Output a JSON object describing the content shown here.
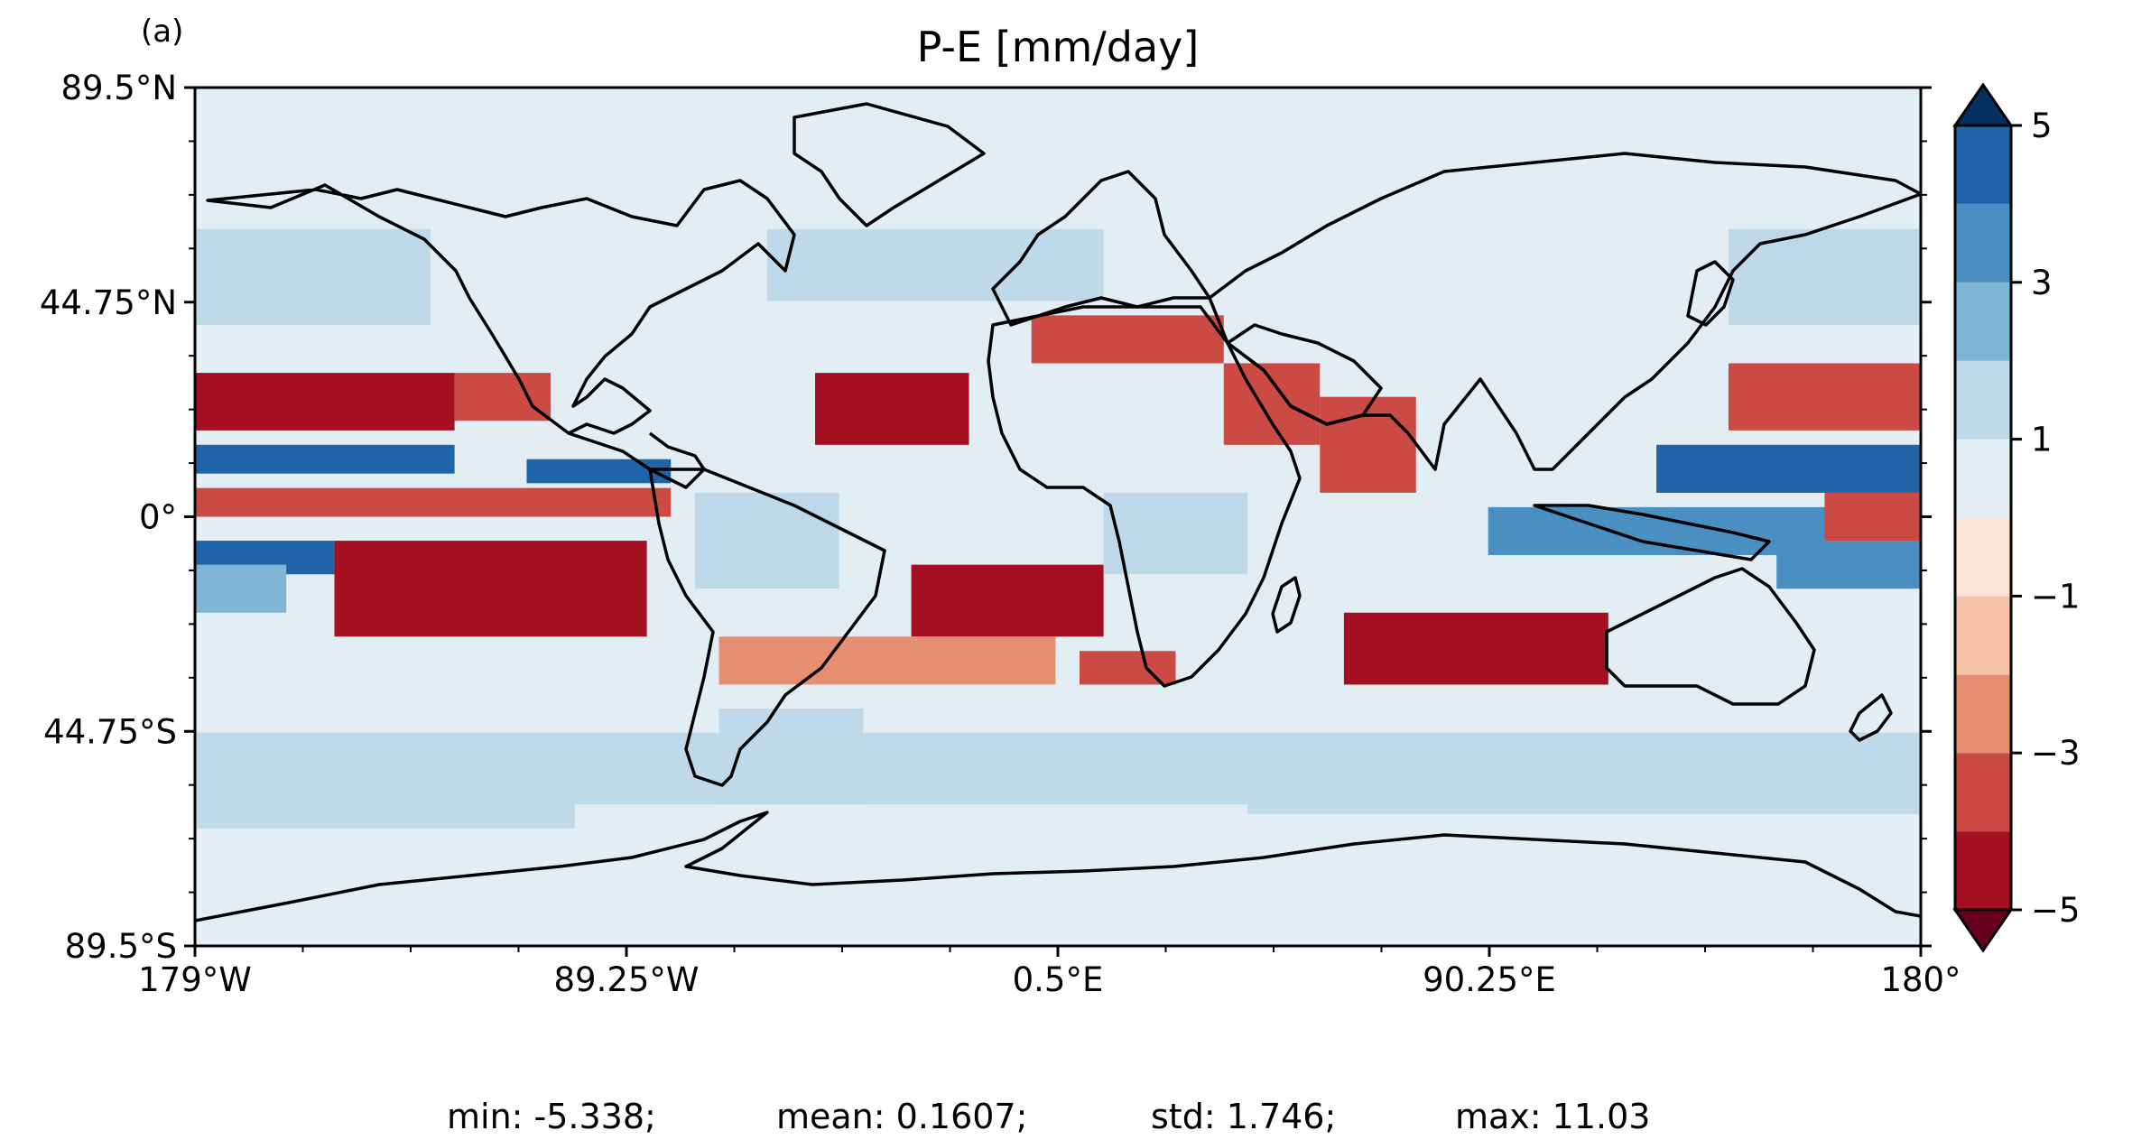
{
  "panel_label": "(a)",
  "title": "P-E [mm/day]",
  "lat_ticks": [
    {
      "value": 89.5,
      "label": "89.5°N"
    },
    {
      "value": 44.75,
      "label": "44.75°N"
    },
    {
      "value": 0,
      "label": "0°"
    },
    {
      "value": -44.75,
      "label": "44.75°S"
    },
    {
      "value": -89.5,
      "label": "89.5°S"
    }
  ],
  "lon_ticks": [
    {
      "value": -179,
      "label": "179°W"
    },
    {
      "value": -89.25,
      "label": "89.25°W"
    },
    {
      "value": 0.5,
      "label": "0.5°E"
    },
    {
      "value": 90.25,
      "label": "90.25°E"
    },
    {
      "value": 180,
      "label": "180°"
    }
  ],
  "colorbar": {
    "levels": [
      -5,
      -4,
      -3,
      -2,
      -1,
      0,
      1,
      2,
      3,
      4,
      5
    ],
    "tick_labels": [
      {
        "value": 5,
        "label": "5"
      },
      {
        "value": 3,
        "label": "3"
      },
      {
        "value": 1,
        "label": "1"
      },
      {
        "value": -1,
        "label": "−1"
      },
      {
        "value": -3,
        "label": "−3"
      },
      {
        "value": -5,
        "label": "−5"
      }
    ],
    "colors": [
      "#67001f",
      "#b2182b",
      "#d6604d",
      "#f4a582",
      "#fddbc7",
      "#f7f7f7",
      "#d1e5f0",
      "#92c5de",
      "#4393c3",
      "#2166ac",
      "#053061"
    ],
    "band_colors": [
      "#a50f22",
      "#cc4a44",
      "#e58e71",
      "#f7c3a8",
      "#fbe5d8",
      "#e3eef4",
      "#bdd9ea",
      "#7fb6d6",
      "#4a8fc2",
      "#1f64a8"
    ],
    "under_color": "#67001f",
    "over_color": "#053061",
    "extend": "both"
  },
  "stats": {
    "min": "min: -5.338;",
    "mean": "mean: 0.1607;",
    "std": "std: 1.746;",
    "max": "max: 11.03"
  },
  "map_regions": [
    {
      "lon": [
        -179,
        -125
      ],
      "lat": [
        9,
        15
      ],
      "v": 5
    },
    {
      "lon": [
        -110,
        -80
      ],
      "lat": [
        7,
        12
      ],
      "v": 4.5
    },
    {
      "lon": [
        -179,
        -150
      ],
      "lat": [
        -12,
        -5
      ],
      "v": 4.5
    },
    {
      "lon": [
        125,
        180
      ],
      "lat": [
        5,
        15
      ],
      "v": 4.5
    },
    {
      "lon": [
        90,
        160
      ],
      "lat": [
        -8,
        2
      ],
      "v": 4
    },
    {
      "lon": [
        150,
        180
      ],
      "lat": [
        -15,
        -5
      ],
      "v": 4
    },
    {
      "lon": [
        -179,
        -160
      ],
      "lat": [
        -20,
        -10
      ],
      "v": 2.5
    },
    {
      "lon": [
        -179,
        -125
      ],
      "lat": [
        18,
        30
      ],
      "v": -4.5
    },
    {
      "lon": [
        -125,
        -105
      ],
      "lat": [
        20,
        30
      ],
      "v": -3
    },
    {
      "lon": [
        -179,
        -80
      ],
      "lat": [
        0,
        6
      ],
      "v": -3.5
    },
    {
      "lon": [
        -150,
        -85
      ],
      "lat": [
        -25,
        -5
      ],
      "v": -4.5
    },
    {
      "lon": [
        -50,
        -18
      ],
      "lat": [
        15,
        30
      ],
      "v": -4.5
    },
    {
      "lon": [
        -30,
        10
      ],
      "lat": [
        -25,
        -10
      ],
      "v": -4.5
    },
    {
      "lon": [
        55,
        75
      ],
      "lat": [
        5,
        25
      ],
      "v": -3
    },
    {
      "lon": [
        -70,
        0
      ],
      "lat": [
        -35,
        -25
      ],
      "v": -2.5
    },
    {
      "lon": [
        60,
        115
      ],
      "lat": [
        -35,
        -20
      ],
      "v": -4.5
    },
    {
      "lon": [
        140,
        180
      ],
      "lat": [
        18,
        32
      ],
      "v": -3
    },
    {
      "lon": [
        160,
        180
      ],
      "lat": [
        -5,
        5
      ],
      "v": -3.5
    },
    {
      "lon": [
        -5,
        35
      ],
      "lat": [
        32,
        42
      ],
      "v": -3
    },
    {
      "lon": [
        35,
        55
      ],
      "lat": [
        15,
        32
      ],
      "v": -3
    },
    {
      "lon": [
        5,
        25
      ],
      "lat": [
        -35,
        -28
      ],
      "v": -3.5
    },
    {
      "lon": [
        -70,
        -40
      ],
      "lat": [
        -60,
        -40
      ],
      "v": 1.5
    },
    {
      "lon": [
        -100,
        40
      ],
      "lat": [
        -60,
        -45
      ],
      "v": 1.5
    },
    {
      "lon": [
        40,
        180
      ],
      "lat": [
        -62,
        -45
      ],
      "v": 1.5
    },
    {
      "lon": [
        -179,
        -100
      ],
      "lat": [
        -65,
        -45
      ],
      "v": 1.5
    },
    {
      "lon": [
        -179,
        -130
      ],
      "lat": [
        40,
        60
      ],
      "v": 1.5
    },
    {
      "lon": [
        -60,
        10
      ],
      "lat": [
        45,
        65
      ],
      "v": 1.5
    },
    {
      "lon": [
        140,
        180
      ],
      "lat": [
        40,
        60
      ],
      "v": 2
    },
    {
      "lon": [
        -75,
        -45
      ],
      "lat": [
        -15,
        5
      ],
      "v": 1.5
    },
    {
      "lon": [
        10,
        40
      ],
      "lat": [
        -12,
        5
      ],
      "v": 1.5
    },
    {
      "lon": [
        -179,
        180
      ],
      "lat": [
        60,
        89.5
      ],
      "v": 0.3
    }
  ]
}
